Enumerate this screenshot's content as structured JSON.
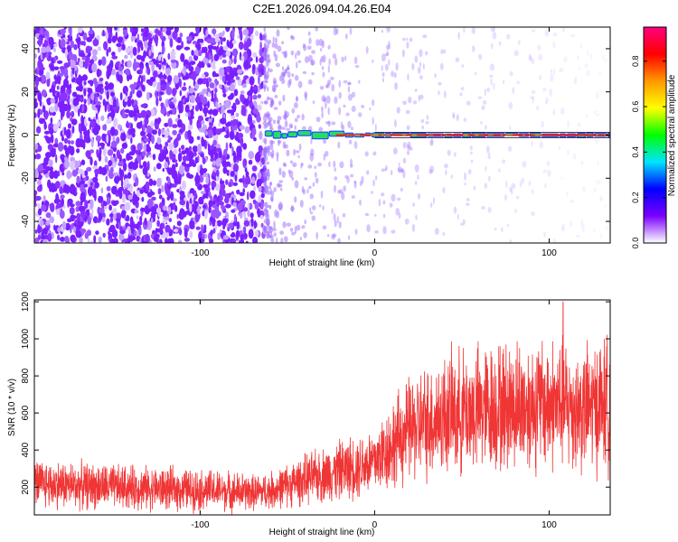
{
  "title": "C2E1.2026.094.04.26.E04",
  "chart_data": [
    {
      "type": "heatmap",
      "xlabel": "Height of straight line (km)",
      "ylabel": "Frequency (Hz)",
      "xlim": [
        -195,
        135
      ],
      "ylim": [
        -50,
        50
      ],
      "xticks": [
        "-100",
        "0",
        "100"
      ],
      "yticks": [
        "-40",
        "-20",
        "0",
        "20",
        "40"
      ],
      "colorbar": {
        "label": "Normalized spectral amplitude",
        "range": [
          0,
          0.95
        ],
        "ticks": [
          "0.0",
          "0.2",
          "0.4",
          "0.6",
          "0.8"
        ],
        "colormap": [
          "#ffffff",
          "#7a00ff",
          "#0000ff",
          "#00e5ff",
          "#00ff00",
          "#ffff00",
          "#ff9900",
          "#ff0000",
          "#ff0080"
        ]
      },
      "carrier_frequency_hz": 0,
      "noise_region_km": [
        -195,
        -63
      ],
      "signal_onset_km": -63,
      "grid": false
    },
    {
      "type": "line",
      "xlabel": "Height of straight line (km)",
      "ylabel": "SNR (10 * v/v)",
      "xlim": [
        -195,
        135
      ],
      "ylim": [
        50,
        1210
      ],
      "xticks": [
        "-100",
        "0",
        "100"
      ],
      "yticks": [
        "200",
        "400",
        "600",
        "800",
        "1000",
        "1200"
      ],
      "series": [
        {
          "color": "#f03535",
          "mean_profile": {
            "x": [
              -195,
              -150,
              -100,
              -70,
              -60,
              -40,
              -20,
              0,
              10,
              20,
              40,
              60,
              80,
              100,
              120,
              135
            ],
            "y": [
              220,
              200,
              185,
              170,
              180,
              240,
              290,
              340,
              430,
              510,
              590,
              620,
              640,
              650,
              620,
              660
            ]
          },
          "peak_y": 1200,
          "peak_x": 108
        }
      ],
      "grid": false
    }
  ]
}
